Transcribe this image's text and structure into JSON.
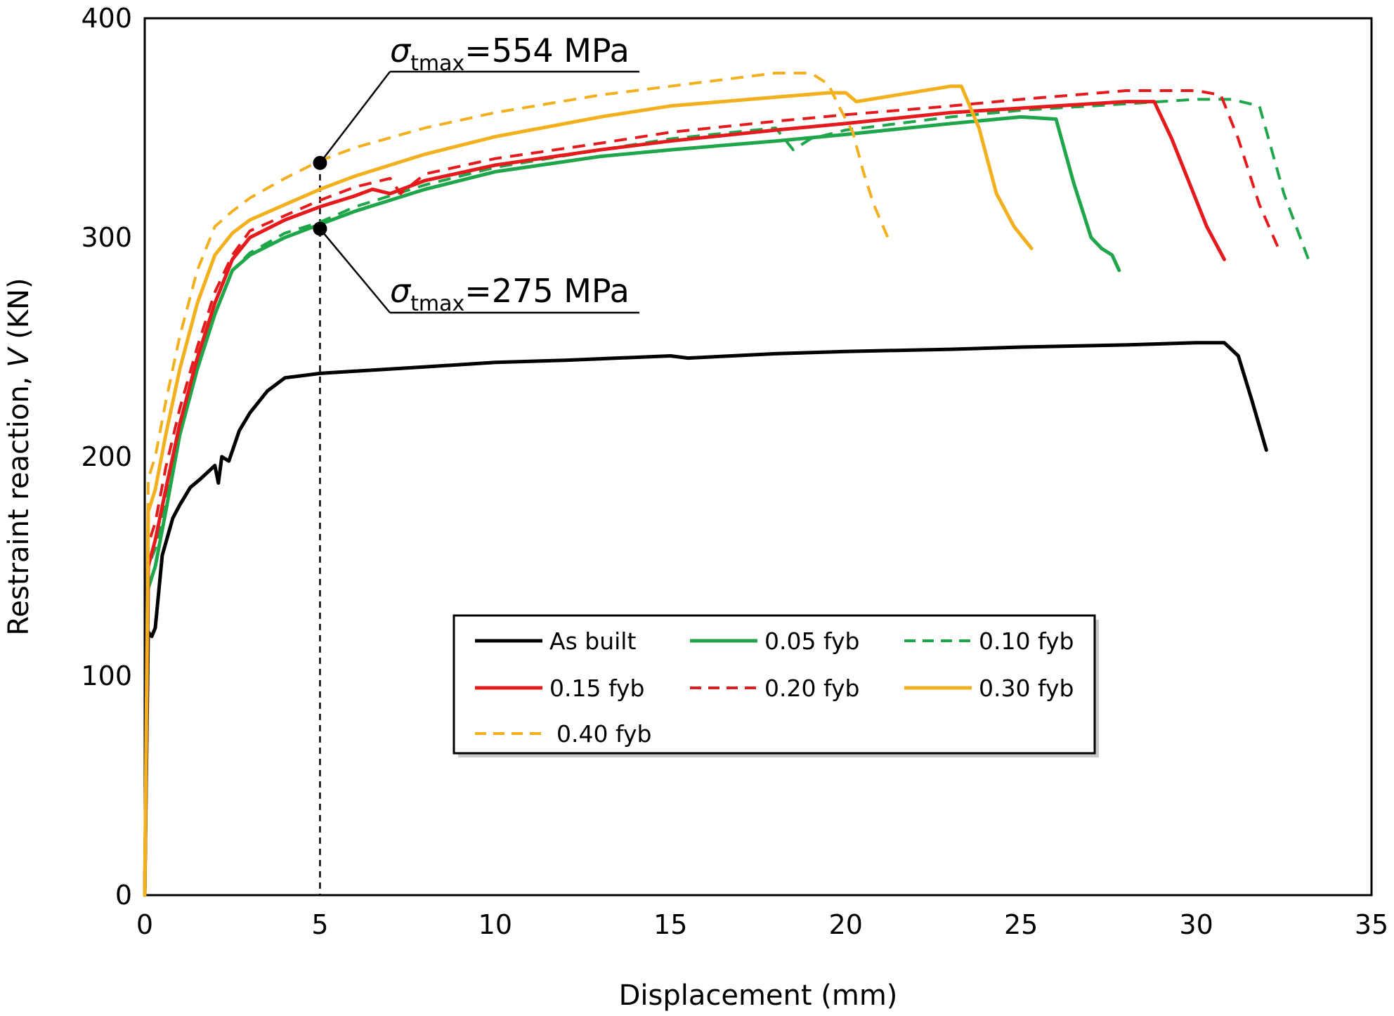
{
  "chart_data": {
    "type": "line",
    "xlabel": "Displacement (mm)",
    "ylabel_prefix": "Restraint reaction, ",
    "ylabel_var": "V",
    "ylabel_suffix": " (KN)",
    "xlim": [
      0,
      35
    ],
    "ylim": [
      0,
      400
    ],
    "xticks": [
      0,
      5,
      10,
      15,
      20,
      25,
      30,
      35
    ],
    "yticks": [
      0,
      100,
      200,
      300,
      400
    ],
    "grid": false,
    "legend_position": "bottom-center",
    "reference_line": {
      "x": 5,
      "style": "dashed"
    },
    "annotations": [
      {
        "symbol": "σ",
        "sub": "tmax",
        "text": "=554 MPa",
        "point": [
          5,
          334
        ]
      },
      {
        "symbol": "σ",
        "sub": "tmax",
        "text": "=275 MPa",
        "point": [
          5,
          304
        ]
      }
    ],
    "series": [
      {
        "name": "As built",
        "color": "#000000",
        "dash": "solid",
        "x": [
          0,
          0.1,
          0.2,
          0.3,
          0.5,
          0.8,
          1.0,
          1.3,
          1.6,
          2.0,
          2.1,
          2.2,
          2.4,
          2.7,
          3.0,
          3.5,
          4.0,
          4.5,
          5.0,
          6.0,
          8.0,
          10.0,
          12.0,
          15.0,
          15.5,
          18.0,
          20.0,
          23.0,
          25.0,
          28.0,
          30.0,
          30.8,
          31.2,
          31.6,
          32.0
        ],
        "y": [
          0,
          120,
          118,
          122,
          155,
          172,
          178,
          186,
          190,
          196,
          188,
          200,
          198,
          212,
          220,
          230,
          236,
          237,
          238,
          239,
          241,
          243,
          244,
          246,
          245,
          247,
          248,
          249,
          250,
          251,
          252,
          252,
          246,
          225,
          203
        ]
      },
      {
        "name": "0.05 fyb",
        "color": "#1fa64a",
        "dash": "solid",
        "x": [
          0,
          0.1,
          0.3,
          0.6,
          1.0,
          1.5,
          2.0,
          2.5,
          3.0,
          4.0,
          5.0,
          6.0,
          8.0,
          10.0,
          13.0,
          15.0,
          18.0,
          20.0,
          23.0,
          25.0,
          26.0,
          26.5,
          27.0,
          27.3,
          27.6,
          27.8
        ],
        "y": [
          0,
          140,
          150,
          175,
          210,
          240,
          265,
          285,
          292,
          300,
          306,
          312,
          322,
          330,
          337,
          340,
          344,
          347,
          352,
          355,
          354,
          325,
          300,
          295,
          292,
          285
        ]
      },
      {
        "name": "0.10 fyb",
        "color": "#1fa64a",
        "dash": "dashed",
        "x": [
          0,
          0.1,
          0.3,
          0.6,
          1.0,
          1.5,
          2.0,
          2.5,
          3.0,
          4.0,
          5.0,
          6.0,
          8.0,
          10.0,
          13.0,
          15.0,
          18.0,
          18.5,
          19.0,
          20.0,
          23.0,
          25.0,
          28.0,
          30.0,
          31.0,
          31.8,
          32.5,
          33.2
        ],
        "y": [
          0,
          150,
          158,
          180,
          210,
          240,
          265,
          285,
          293,
          302,
          307,
          314,
          324,
          332,
          340,
          345,
          350,
          340,
          345,
          349,
          355,
          358,
          361,
          363,
          363,
          360,
          320,
          290
        ]
      },
      {
        "name": "0.15 fyb",
        "color": "#e41a1c",
        "dash": "solid",
        "x": [
          0,
          0.1,
          0.3,
          0.6,
          1.0,
          1.5,
          2.0,
          2.5,
          3.0,
          4.0,
          5.0,
          6.0,
          6.5,
          7.0,
          8.0,
          10.0,
          13.0,
          15.0,
          18.0,
          20.0,
          23.0,
          25.0,
          28.0,
          28.8,
          29.3,
          29.8,
          30.3,
          30.8
        ],
        "y": [
          0,
          150,
          162,
          185,
          215,
          245,
          270,
          290,
          300,
          308,
          314,
          319,
          322,
          320,
          326,
          333,
          340,
          344,
          349,
          352,
          357,
          359,
          362,
          362,
          345,
          325,
          305,
          290
        ]
      },
      {
        "name": "0.20 fyb",
        "color": "#e41a1c",
        "dash": "dashed",
        "x": [
          0,
          0.1,
          0.3,
          0.6,
          1.0,
          1.5,
          2.0,
          2.5,
          3.0,
          4.0,
          5.0,
          6.0,
          7.0,
          7.3,
          8.0,
          10.0,
          13.0,
          15.0,
          18.0,
          20.0,
          23.0,
          25.0,
          28.0,
          30.0,
          30.7,
          31.2,
          31.8,
          32.4
        ],
        "y": [
          0,
          160,
          170,
          195,
          222,
          250,
          275,
          292,
          303,
          310,
          317,
          323,
          327,
          320,
          329,
          336,
          343,
          348,
          353,
          356,
          360,
          363,
          367,
          367,
          365,
          345,
          315,
          293
        ]
      },
      {
        "name": "0.30 fyb",
        "color": "#f2b01e",
        "dash": "solid",
        "x": [
          0,
          0.1,
          0.3,
          0.6,
          1.0,
          1.5,
          2.0,
          2.5,
          3.0,
          4.0,
          5.0,
          6.0,
          8.0,
          10.0,
          13.0,
          15.0,
          18.0,
          19.5,
          20.0,
          20.3,
          23.0,
          23.3,
          23.8,
          24.3,
          24.8,
          25.3
        ],
        "y": [
          0,
          175,
          185,
          210,
          240,
          270,
          292,
          302,
          308,
          315,
          322,
          328,
          338,
          346,
          355,
          360,
          364,
          366,
          366,
          362,
          369,
          369,
          350,
          320,
          305,
          295
        ]
      },
      {
        "name": "0.40 fyb",
        "color": "#f2b01e",
        "dash": "dashed",
        "x": [
          0,
          0.1,
          0.3,
          0.6,
          1.0,
          1.5,
          2.0,
          2.5,
          3.0,
          4.0,
          5.0,
          6.0,
          8.0,
          10.0,
          13.0,
          15.0,
          17.0,
          18.0,
          19.0,
          19.5,
          19.8,
          20.2,
          20.5,
          20.8,
          21.2
        ],
        "y": [
          0,
          190,
          200,
          225,
          255,
          285,
          305,
          312,
          318,
          327,
          335,
          341,
          350,
          357,
          365,
          369,
          373,
          375,
          375,
          370,
          360,
          348,
          330,
          315,
          300
        ]
      }
    ]
  }
}
